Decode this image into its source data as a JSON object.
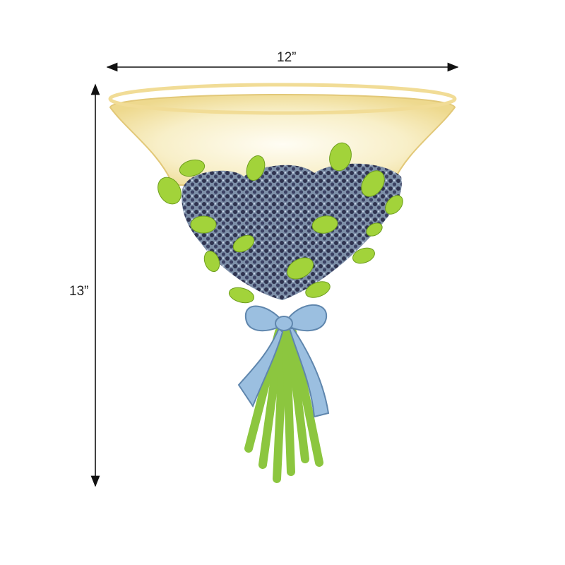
{
  "dimensions": {
    "width_label": "12”",
    "height_label": "13”"
  },
  "colors": {
    "background": "#ffffff",
    "shade": "#f6ecc2",
    "shade_glow": "#fffbe8",
    "flowers": "#3b3f5c",
    "leaves": "#9acd32",
    "bow": "#8fb4d8",
    "stems": "#8cc63f"
  }
}
